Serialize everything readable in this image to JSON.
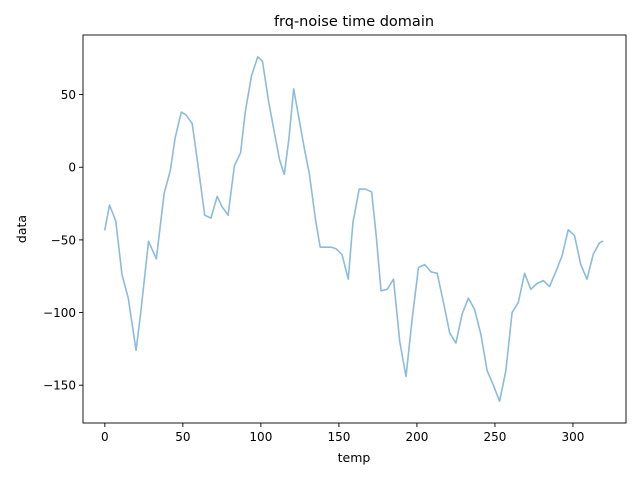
{
  "chart_data": {
    "type": "line",
    "title": "frq-noise time domain",
    "xlabel": "temp",
    "ylabel": "data",
    "xlim": [
      -14,
      334
    ],
    "ylim": [
      -176,
      91
    ],
    "grid": false,
    "x_ticks": [
      0,
      50,
      100,
      150,
      200,
      250,
      300
    ],
    "y_ticks": [
      50,
      0,
      -50,
      -100,
      -150
    ],
    "x_tick_labels": [
      "0",
      "50",
      "100",
      "150",
      "200",
      "250",
      "300"
    ],
    "y_tick_labels": [
      "50",
      "0",
      "−50",
      "−100",
      "−150"
    ],
    "series": [
      {
        "color": "#8bbcdc",
        "x": [
          0,
          3,
          7,
          11,
          15,
          20,
          23,
          28,
          33,
          38,
          42,
          45,
          49,
          52,
          56,
          60,
          64,
          68,
          72,
          75,
          79,
          83,
          87,
          90,
          94,
          98,
          101,
          105,
          109,
          112,
          115,
          118,
          121,
          125,
          128,
          131,
          135,
          138,
          141,
          145,
          148,
          152,
          156,
          159,
          163,
          167,
          171,
          174,
          177,
          181,
          185,
          189,
          193,
          197,
          201,
          205,
          209,
          213,
          217,
          221,
          225,
          229,
          233,
          237,
          241,
          245,
          249,
          253,
          257,
          261,
          265,
          269,
          273,
          277,
          281,
          285,
          289,
          293,
          297,
          301,
          305,
          309,
          313,
          317,
          319
        ],
        "y": [
          -43,
          -26,
          -37,
          -74,
          -90,
          -126,
          -100,
          -51,
          -63,
          -18,
          -2,
          20,
          38,
          36,
          30,
          -1,
          -33,
          -35,
          -20,
          -27,
          -33,
          1,
          10,
          38,
          63,
          76,
          73,
          45,
          22,
          5,
          -5,
          20,
          54,
          30,
          12,
          -4,
          -36,
          -55,
          -55,
          -55,
          -56,
          -60,
          -77,
          -38,
          -15,
          -15,
          -17,
          -48,
          -85,
          -84,
          -77,
          -120,
          -144,
          -104,
          -69,
          -67,
          -72,
          -73,
          -93,
          -114,
          -121,
          -101,
          -90,
          -98,
          -115,
          -140,
          -150,
          -161,
          -140,
          -100,
          -93,
          -73,
          -84,
          -80,
          -78,
          -82,
          -72,
          -61,
          -43,
          -47,
          -67,
          -77,
          -60,
          -52,
          -51
        ]
      }
    ]
  }
}
